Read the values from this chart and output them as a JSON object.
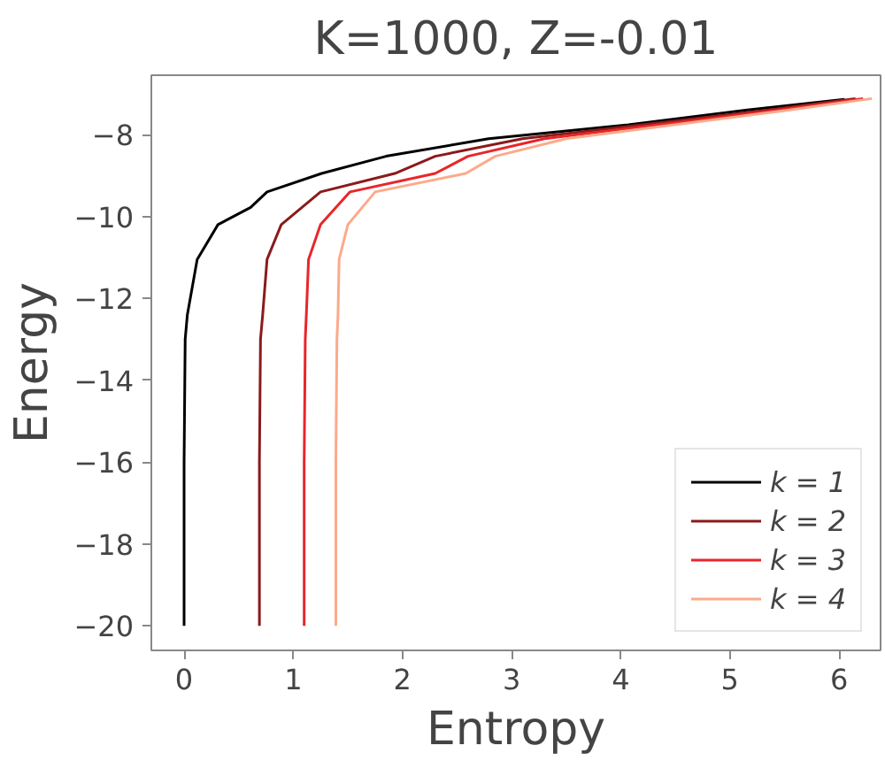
{
  "chart_data": {
    "type": "line",
    "title": "K=1000, Z=-0.01",
    "xlabel": "Entropy",
    "ylabel": "Energy",
    "xlim": [
      -0.3,
      6.38
    ],
    "ylim": [
      -20.6,
      -6.55
    ],
    "xticks": [
      0,
      1,
      2,
      3,
      4,
      5,
      6
    ],
    "yticks": [
      {
        "value": -20,
        "label": "−20"
      },
      {
        "value": -18,
        "label": "−18"
      },
      {
        "value": -16,
        "label": "−16"
      },
      {
        "value": -14,
        "label": "−14"
      },
      {
        "value": -12,
        "label": "−12"
      },
      {
        "value": -10,
        "label": "−10"
      },
      {
        "value": -8,
        "label": "−8"
      }
    ],
    "legend": "bottom right",
    "grid": false,
    "line_style": "solid",
    "series": [
      {
        "name": "k = 1",
        "color": "#000000",
        "x": [
          0,
          0.0,
          0.01,
          0.03,
          0.12,
          0.31,
          0.61,
          0.76,
          1.26,
          1.85,
          2.79,
          4.07,
          5.16,
          6.05
        ],
        "values": [
          -20,
          -16,
          -13,
          -12.4,
          -11.05,
          -10.2,
          -9.78,
          -9.4,
          -8.95,
          -8.53,
          -8.1,
          -7.76,
          -7.4,
          -7.14
        ]
      },
      {
        "name": "k = 2",
        "color": "#8b1a1a",
        "x": [
          0.69,
          0.69,
          0.7,
          0.72,
          0.76,
          0.89,
          1.25,
          1.93,
          2.3,
          3.1,
          5.35,
          6.15
        ],
        "values": [
          -20,
          -16,
          -13,
          -12.4,
          -11.05,
          -10.2,
          -9.4,
          -8.95,
          -8.53,
          -8.1,
          -7.4,
          -7.12
        ]
      },
      {
        "name": "k = 3",
        "color": "#e8262a",
        "x": [
          1.1,
          1.1,
          1.11,
          1.12,
          1.14,
          1.25,
          1.52,
          2.3,
          2.6,
          3.3,
          5.45,
          6.22
        ],
        "values": [
          -20,
          -16,
          -13,
          -12.4,
          -11.05,
          -10.2,
          -9.4,
          -8.95,
          -8.53,
          -8.1,
          -7.4,
          -7.12
        ]
      },
      {
        "name": "k = 4",
        "color": "#fcaa8a",
        "x": [
          1.39,
          1.39,
          1.4,
          1.41,
          1.42,
          1.5,
          1.75,
          2.58,
          2.85,
          3.5,
          5.55,
          6.3
        ],
        "values": [
          -20,
          -16,
          -13,
          -12.4,
          -11.05,
          -10.2,
          -9.4,
          -8.95,
          -8.53,
          -8.1,
          -7.4,
          -7.12
        ]
      }
    ]
  }
}
